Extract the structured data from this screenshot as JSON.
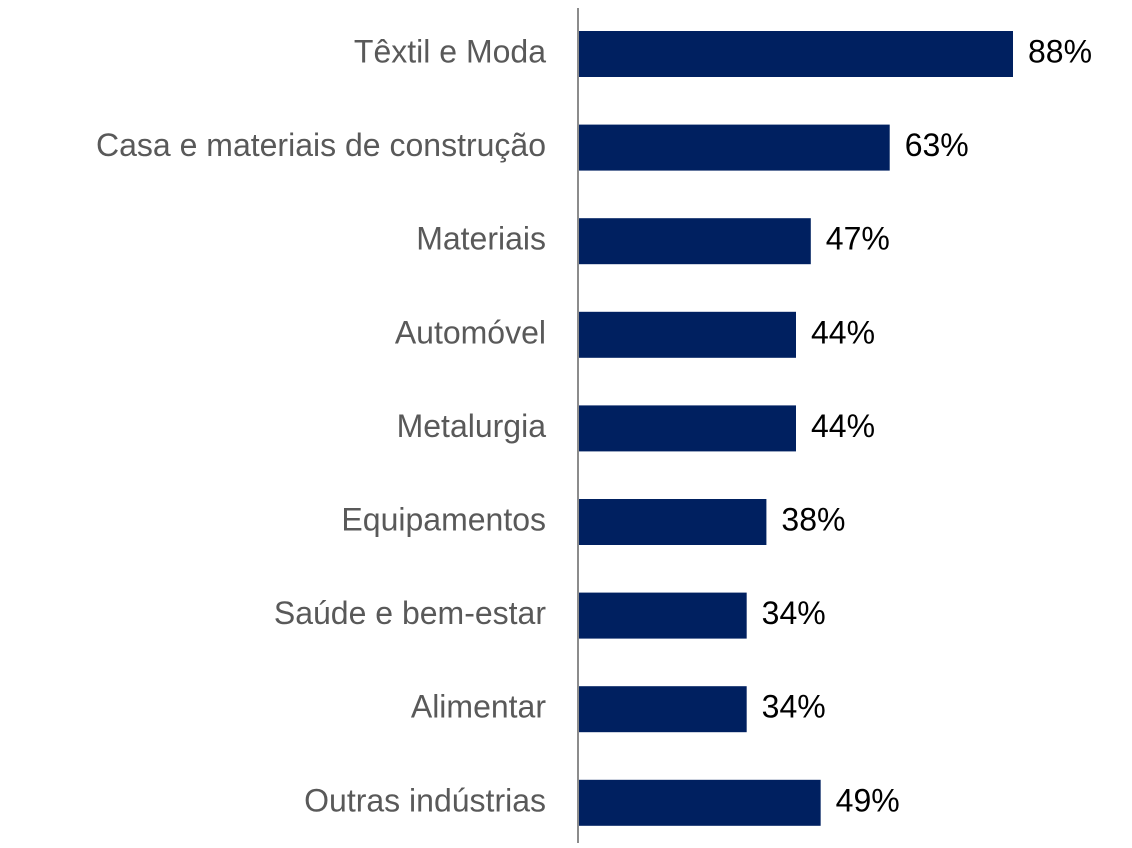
{
  "chart_data": {
    "type": "barh",
    "categories": [
      "Têxtil e Moda",
      "Casa e materiais de construção",
      "Materiais",
      "Automóvel",
      "Metalurgia",
      "Equipamentos",
      "Saúde e bem-estar",
      "Alimentar",
      "Outras indústrias"
    ],
    "values": [
      88,
      63,
      47,
      44,
      44,
      38,
      34,
      34,
      49
    ],
    "value_labels": [
      "88%",
      "63%",
      "47%",
      "44%",
      "44%",
      "38%",
      "34%",
      "34%",
      "49%"
    ],
    "color": "#002060"
  }
}
